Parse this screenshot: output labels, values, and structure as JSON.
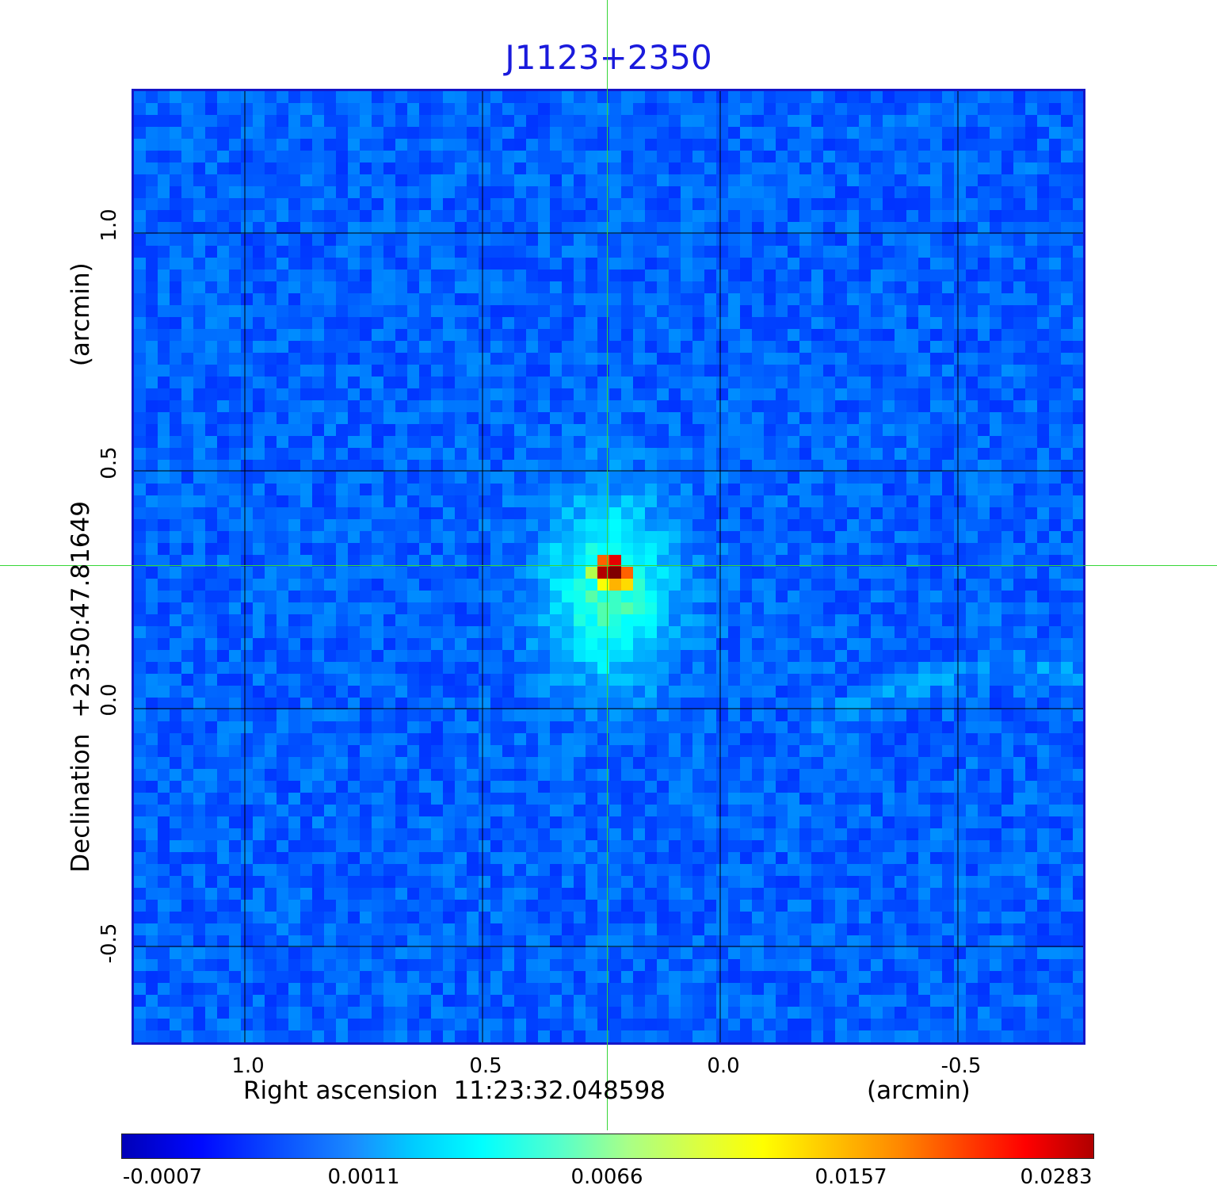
{
  "title": "J1123+2350",
  "axes": {
    "xlabel_prefix": "Right ascension",
    "xlabel_coord": "11:23:32.048598",
    "xlabel_unit": "(arcmin)",
    "ylabel_prefix": "Declination",
    "ylabel_coord": "+23:50:47.81649",
    "ylabel_unit": "(arcmin)",
    "x_ticks": [
      "1.0",
      "0.5",
      "0.0",
      "-0.5"
    ],
    "y_ticks": [
      "1.0",
      "0.5",
      "0.0",
      "-0.5"
    ]
  },
  "colorbar": {
    "ticks": [
      "-0.0007",
      "0.0011",
      "0.0066",
      "0.0157",
      "0.0283"
    ],
    "colormap": "jet"
  },
  "colors": {
    "title": "#1a1adc",
    "frame": "#1616c8",
    "crosshair": "#37d637",
    "background_map": "#2f6cf0"
  },
  "image": {
    "description_type": "radio intensity map with central point source",
    "grid": true,
    "crosshair": true
  }
}
